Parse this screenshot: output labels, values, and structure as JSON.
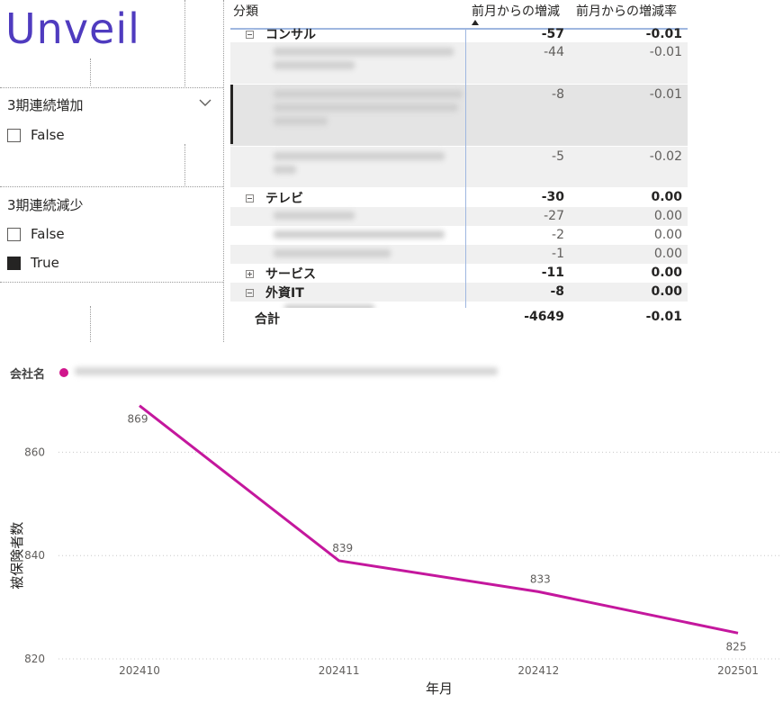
{
  "logo": {
    "text": "Unveil",
    "color": "#4f3bbf"
  },
  "slicers": [
    {
      "title": "3期連続増加",
      "options": [
        {
          "label": "False",
          "checked": false
        }
      ]
    },
    {
      "title": "3期連続減少",
      "options": [
        {
          "label": "False",
          "checked": false
        },
        {
          "label": "True",
          "checked": true
        }
      ]
    }
  ],
  "table": {
    "headers": {
      "category": "分類",
      "change": "前月からの増減",
      "change_rate": "前月からの増減率"
    },
    "rows": [
      {
        "type": "group",
        "expander": "minus",
        "label": "コンサル",
        "change": "-57",
        "rate": "-0.01"
      },
      {
        "type": "sub",
        "change": "-44",
        "rate": "-0.01"
      },
      {
        "type": "sub",
        "change": "-8",
        "rate": "-0.01"
      },
      {
        "type": "sub",
        "change": "-5",
        "rate": "-0.02"
      },
      {
        "type": "group",
        "expander": "minus",
        "label": "テレビ",
        "change": "-30",
        "rate": "0.00"
      },
      {
        "type": "sub",
        "change": "-27",
        "rate": "0.00"
      },
      {
        "type": "sub",
        "change": "-2",
        "rate": "0.00"
      },
      {
        "type": "sub",
        "change": "-1",
        "rate": "0.00"
      },
      {
        "type": "group",
        "expander": "plus",
        "label": "サービス",
        "change": "-11",
        "rate": "0.00"
      },
      {
        "type": "group",
        "expander": "minus",
        "label": "外資IT",
        "change": "-8",
        "rate": "0.00"
      }
    ],
    "total": {
      "label": "合計",
      "change": "-4649",
      "rate": "-0.01"
    }
  },
  "legend": {
    "title": "会社名",
    "color": "#d0168c"
  },
  "chart_data": {
    "type": "line",
    "categories": [
      "202410",
      "202411",
      "202412",
      "202501"
    ],
    "series": [
      {
        "values": [
          869,
          839,
          833,
          825
        ]
      }
    ],
    "data_labels": [
      "869",
      "839",
      "833",
      "825"
    ],
    "xlabel": "年月",
    "ylabel": "被保険者数",
    "y_ticks": [
      "820",
      "840",
      "860"
    ],
    "ylim": [
      820,
      870
    ],
    "grid": true,
    "line_color": "#c4179d"
  }
}
